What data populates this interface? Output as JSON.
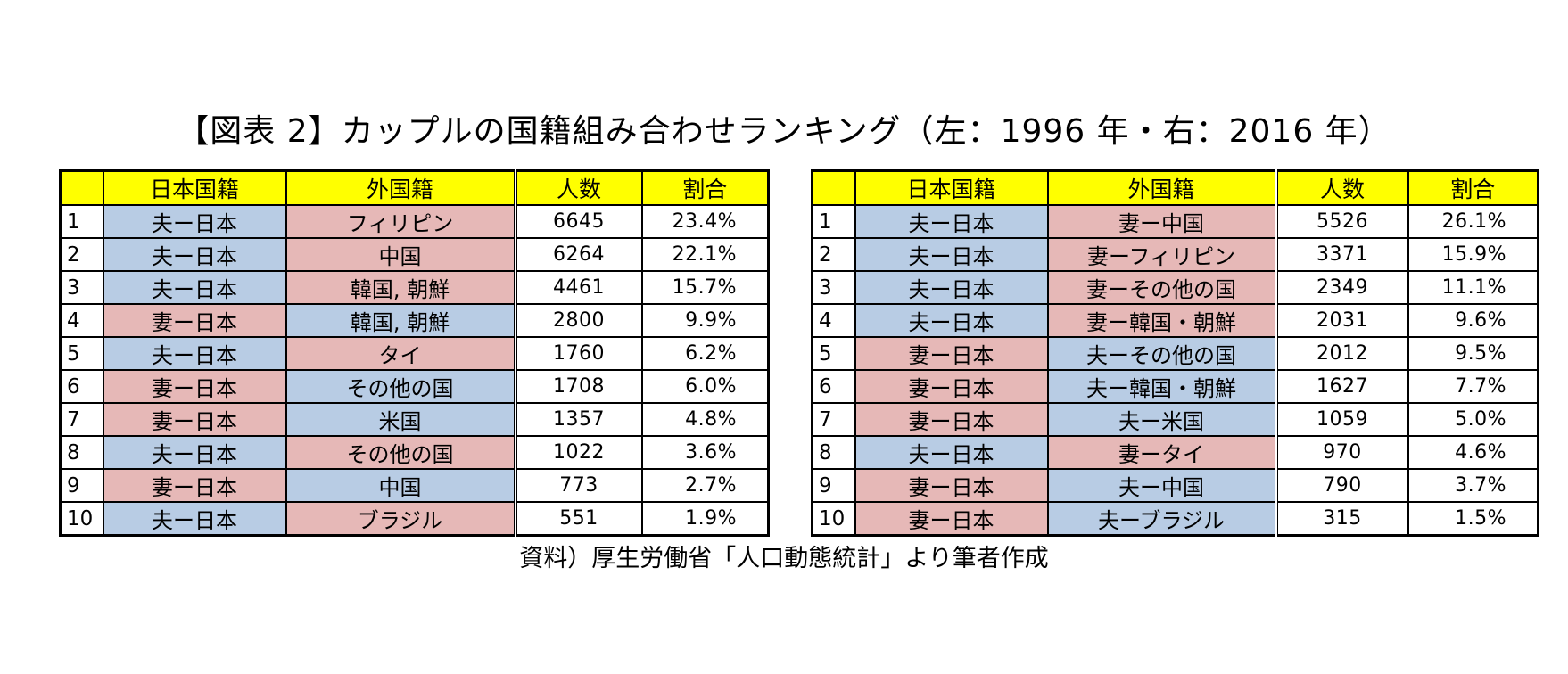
{
  "title": "【図表 2】カップルの国籍組み合わせランキング（左：1996 年・右：2016 年）",
  "colors": {
    "header_bg": "#ffff00",
    "husband_japanese_bg": "#b8cce4",
    "wife_japanese_bg": "#e6b8b7"
  },
  "headers": {
    "rank": "",
    "japanese_nationality": "日本国籍",
    "foreign_nationality": "外国籍",
    "count": "人数",
    "share": "割合"
  },
  "left_table": {
    "rows": [
      {
        "rank": "1",
        "japanese": "夫ー日本",
        "foreign": "フィリピン",
        "count": "6645",
        "share": "23.4%",
        "japanese_color": "blue",
        "foreign_color": "pink"
      },
      {
        "rank": "2",
        "japanese": "夫ー日本",
        "foreign": "中国",
        "count": "6264",
        "share": "22.1%",
        "japanese_color": "blue",
        "foreign_color": "pink"
      },
      {
        "rank": "3",
        "japanese": "夫ー日本",
        "foreign": "韓国, 朝鮮",
        "count": "4461",
        "share": "15.7%",
        "japanese_color": "blue",
        "foreign_color": "pink"
      },
      {
        "rank": "4",
        "japanese": "妻ー日本",
        "foreign": "韓国, 朝鮮",
        "count": "2800",
        "share": "9.9%",
        "japanese_color": "pink",
        "foreign_color": "blue"
      },
      {
        "rank": "5",
        "japanese": "夫ー日本",
        "foreign": "タイ",
        "count": "1760",
        "share": "6.2%",
        "japanese_color": "blue",
        "foreign_color": "pink"
      },
      {
        "rank": "6",
        "japanese": "妻ー日本",
        "foreign": "その他の国",
        "count": "1708",
        "share": "6.0%",
        "japanese_color": "pink",
        "foreign_color": "blue"
      },
      {
        "rank": "7",
        "japanese": "妻ー日本",
        "foreign": "米国",
        "count": "1357",
        "share": "4.8%",
        "japanese_color": "pink",
        "foreign_color": "blue"
      },
      {
        "rank": "8",
        "japanese": "夫ー日本",
        "foreign": "その他の国",
        "count": "1022",
        "share": "3.6%",
        "japanese_color": "blue",
        "foreign_color": "pink"
      },
      {
        "rank": "9",
        "japanese": "妻ー日本",
        "foreign": "中国",
        "count": "773",
        "share": "2.7%",
        "japanese_color": "pink",
        "foreign_color": "blue"
      },
      {
        "rank": "10",
        "japanese": "夫ー日本",
        "foreign": "ブラジル",
        "count": "551",
        "share": "1.9%",
        "japanese_color": "blue",
        "foreign_color": "pink"
      }
    ]
  },
  "right_table": {
    "rows": [
      {
        "rank": "1",
        "japanese": "夫ー日本",
        "foreign": "妻ー中国",
        "count": "5526",
        "share": "26.1%",
        "japanese_color": "blue",
        "foreign_color": "pink"
      },
      {
        "rank": "2",
        "japanese": "夫ー日本",
        "foreign": "妻ーフィリピン",
        "count": "3371",
        "share": "15.9%",
        "japanese_color": "blue",
        "foreign_color": "pink"
      },
      {
        "rank": "3",
        "japanese": "夫ー日本",
        "foreign": "妻ーその他の国",
        "count": "2349",
        "share": "11.1%",
        "japanese_color": "blue",
        "foreign_color": "pink"
      },
      {
        "rank": "4",
        "japanese": "夫ー日本",
        "foreign": "妻ー韓国・朝鮮",
        "count": "2031",
        "share": "9.6%",
        "japanese_color": "blue",
        "foreign_color": "pink"
      },
      {
        "rank": "5",
        "japanese": "妻ー日本",
        "foreign": "夫ーその他の国",
        "count": "2012",
        "share": "9.5%",
        "japanese_color": "pink",
        "foreign_color": "blue"
      },
      {
        "rank": "6",
        "japanese": "妻ー日本",
        "foreign": "夫ー韓国・朝鮮",
        "count": "1627",
        "share": "7.7%",
        "japanese_color": "pink",
        "foreign_color": "blue"
      },
      {
        "rank": "7",
        "japanese": "妻ー日本",
        "foreign": "夫ー米国",
        "count": "1059",
        "share": "5.0%",
        "japanese_color": "pink",
        "foreign_color": "blue"
      },
      {
        "rank": "8",
        "japanese": "夫ー日本",
        "foreign": "妻ータイ",
        "count": "970",
        "share": "4.6%",
        "japanese_color": "blue",
        "foreign_color": "pink"
      },
      {
        "rank": "9",
        "japanese": "妻ー日本",
        "foreign": "夫ー中国",
        "count": "790",
        "share": "3.7%",
        "japanese_color": "pink",
        "foreign_color": "blue"
      },
      {
        "rank": "10",
        "japanese": "妻ー日本",
        "foreign": "夫ーブラジル",
        "count": "315",
        "share": "1.5%",
        "japanese_color": "pink",
        "foreign_color": "blue"
      }
    ]
  },
  "caption": "資料）厚生労働省「人口動態統計」より筆者作成"
}
